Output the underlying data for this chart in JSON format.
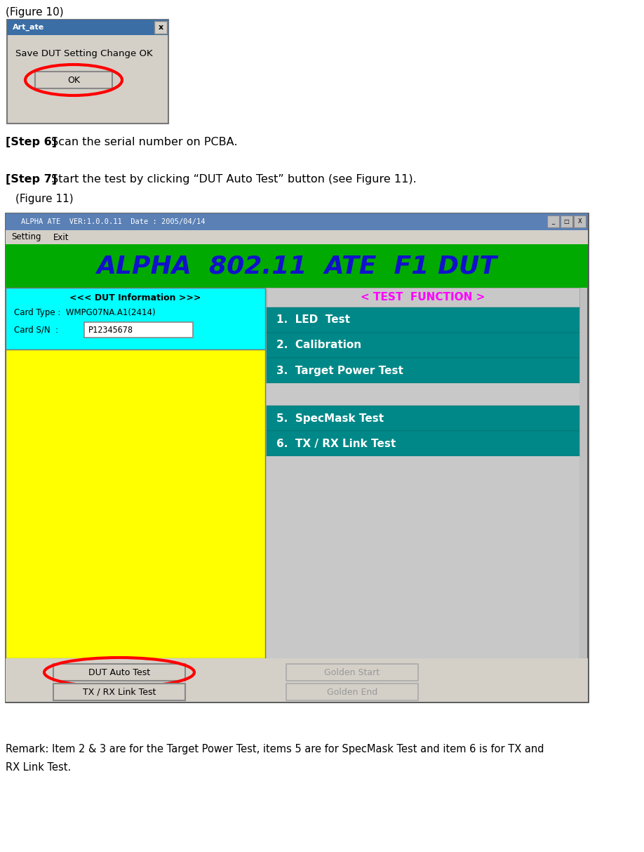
{
  "fig_width": 9.18,
  "fig_height": 12.14,
  "bg_color": "#ffffff",
  "figure10_label": "(Figure 10)",
  "step6_bold": "[Step 6]",
  "step6_text": " Scan the serial number on PCBA.",
  "step7_bold": "[Step 7]",
  "step7_text": " Start the test by clicking “DUT Auto Test” button (see Figure 11).",
  "figure11_label": "(Figure 11)",
  "remark_line1": "Remark: Item 2 & 3 are for the Target Power Test, items 5 are for SpecMask Test and item 6 is for TX and",
  "remark_line2": "        RX Link Test.",
  "win1_title": "Art_ate",
  "win1_msg": "Save DUT Setting Change OK",
  "win1_btn": "OK",
  "app_title": "ALPHA ATE  VER:1.0.0.11  Date : 2005/04/14",
  "app_header": "ALPHA  802.11  ATE  F1 DUT",
  "menu1": "Setting",
  "menu2": "Exit",
  "dut_info_title": "<<< DUT Information >>>",
  "card_type_label": "Card Type :  WMPG07NA.A1(2414)",
  "card_sn_label": "Card S/N  :   P12345678",
  "test_func_title": "< TEST  FUNCTION >",
  "test_items_top": [
    "1.  LED  Test",
    "2.  Calibration",
    "3.  Target Power Test"
  ],
  "test_items_bot": [
    "5.  SpecMask Test",
    "6.  TX / RX Link Test"
  ],
  "btn1": "DUT Auto Test",
  "btn2": "TX / RX Link Test",
  "btn3": "Golden Start",
  "btn4": "Golden End"
}
